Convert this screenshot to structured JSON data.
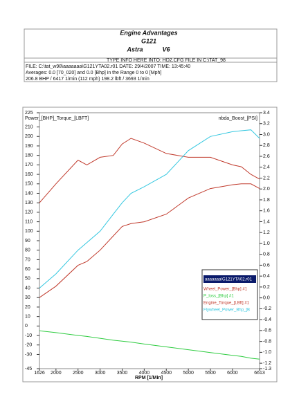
{
  "header": {
    "title": "Engine Advantages",
    "model": "G121",
    "make": "Astra",
    "engine": "V6",
    "info": "TYPE INFO HERE INTO: HD2.CFG FILE IN C:\\TAT_98",
    "lines": [
      "FILE: C:\\tat_w98\\aaaaaaa\\G121YTA02.r01  DATE: 29/4/2007  TIME: 13:45:40",
      "Averages: 0.0 [70_020] and 0.0 [Bhp] in the Range 0 to 0 [Mph]",
      "206.8 BHP / 6417 1/min (112 mph)    198.2 lbft / 3693 1/min"
    ]
  },
  "chart_data": {
    "type": "line",
    "ylabel": "Power_[BHP]_Torque_[LBFT]",
    "y2label": "nbda_Boost_[PSI]",
    "xlabel": "RPM  [1/Min]",
    "legend_title": "aaaaaaa\\G121YTA02.r01",
    "x": [
      1626,
      2000,
      2500,
      2700,
      3000,
      3300,
      3500,
      3700,
      4000,
      4500,
      5000,
      5500,
      6000,
      6200,
      6417,
      6613
    ],
    "xlim": [
      1626,
      6613
    ],
    "xticks": [
      1626,
      2000,
      2500,
      3000,
      3500,
      4000,
      4500,
      5000,
      5500,
      6000,
      6613
    ],
    "ylim": [
      -45,
      225
    ],
    "yticks": [
      225,
      210,
      200,
      190,
      180,
      170,
      160,
      150,
      140,
      130,
      120,
      110,
      100,
      90,
      80,
      70,
      60,
      50,
      40,
      30,
      20,
      10,
      0,
      -10,
      -20,
      -30,
      -45
    ],
    "y2lim": [
      -1.3,
      3.4
    ],
    "y2ticks": [
      3.4,
      3.2,
      {
        "value": 3,
        "label": "3.0"
      },
      2.8,
      2.6,
      2.4,
      2.2,
      {
        "value": 2,
        "label": "2.0"
      },
      1.8,
      1.6,
      1.4,
      1.2,
      {
        "value": 1,
        "label": "1.0"
      },
      0.8,
      0.6,
      0.4,
      0.2,
      {
        "value": 0,
        "label": "0.0"
      },
      -0.2,
      -0.4,
      -0.6,
      -0.8,
      {
        "value": -1,
        "label": "-1.0"
      },
      -1.2,
      -1.3
    ],
    "series": [
      {
        "name": "Wheel_Power_[Bhp] #1",
        "color": "#c0392b",
        "values": [
          30,
          42,
          64,
          68,
          80,
          95,
          105,
          108,
          110,
          118,
          135,
          145,
          149,
          150,
          150,
          145
        ]
      },
      {
        "name": "P_loss_[Bhp] #1",
        "color": "#2ecc40",
        "values": [
          -5,
          -7,
          -10,
          -11,
          -13,
          -15,
          -16,
          -17,
          -19,
          -22,
          -25,
          -28,
          -31,
          -32,
          -34,
          -35
        ]
      },
      {
        "name": "Engine_Torque_[LBft] #1",
        "color": "#c0392b",
        "values": [
          130,
          150,
          175,
          170,
          178,
          180,
          192,
          198,
          193,
          182,
          178,
          178,
          170,
          168,
          160,
          155
        ]
      },
      {
        "name": "Flywheel_Power_Bhp_[B",
        "color": "#33c7e0",
        "values": [
          40,
          55,
          80,
          88,
          100,
          118,
          130,
          140,
          147,
          160,
          185,
          200,
          205,
          206,
          207,
          198
        ]
      }
    ]
  }
}
